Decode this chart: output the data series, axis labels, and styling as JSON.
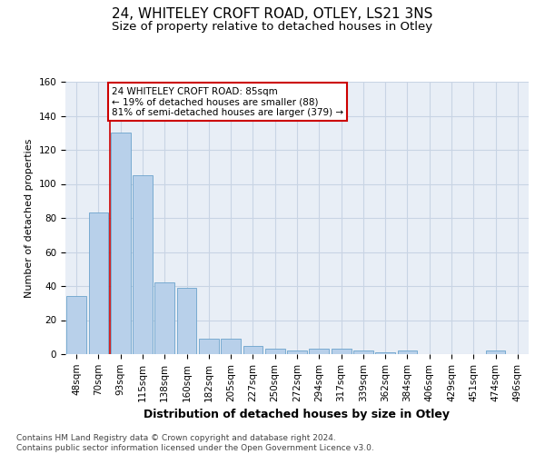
{
  "title1": "24, WHITELEY CROFT ROAD, OTLEY, LS21 3NS",
  "title2": "Size of property relative to detached houses in Otley",
  "xlabel": "Distribution of detached houses by size in Otley",
  "ylabel": "Number of detached properties",
  "categories": [
    "48sqm",
    "70sqm",
    "93sqm",
    "115sqm",
    "138sqm",
    "160sqm",
    "182sqm",
    "205sqm",
    "227sqm",
    "250sqm",
    "272sqm",
    "294sqm",
    "317sqm",
    "339sqm",
    "362sqm",
    "384sqm",
    "406sqm",
    "429sqm",
    "451sqm",
    "474sqm",
    "496sqm"
  ],
  "values": [
    34,
    83,
    130,
    105,
    42,
    39,
    9,
    9,
    5,
    3,
    2,
    3,
    3,
    2,
    1,
    2,
    0,
    0,
    0,
    2,
    0
  ],
  "bar_color": "#b8d0ea",
  "bar_edge_color": "#6ba3cc",
  "grid_color": "#c8d4e4",
  "background_color": "#e8eef6",
  "vline_x": 1.5,
  "vline_color": "#cc0000",
  "annotation_text": "24 WHITELEY CROFT ROAD: 85sqm\n← 19% of detached houses are smaller (88)\n81% of semi-detached houses are larger (379) →",
  "annotation_box_color": "#ffffff",
  "annotation_box_edge": "#cc0000",
  "ylim": [
    0,
    160
  ],
  "yticks": [
    0,
    20,
    40,
    60,
    80,
    100,
    120,
    140,
    160
  ],
  "footer": "Contains HM Land Registry data © Crown copyright and database right 2024.\nContains public sector information licensed under the Open Government Licence v3.0.",
  "title1_fontsize": 11,
  "title2_fontsize": 9.5,
  "xlabel_fontsize": 9,
  "ylabel_fontsize": 8,
  "tick_fontsize": 7.5,
  "annotation_fontsize": 7.5,
  "footer_fontsize": 6.5
}
